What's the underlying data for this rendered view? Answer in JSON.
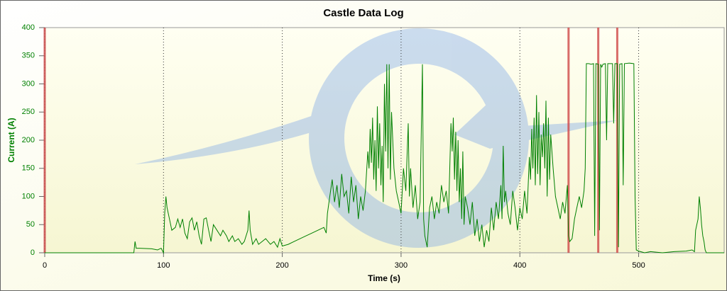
{
  "chart_data": {
    "type": "line",
    "title": "Castle Data Log",
    "xlabel": "Time (s)",
    "ylabel": "Current (A)",
    "xlim": [
      0,
      572
    ],
    "ylim": [
      0,
      400
    ],
    "xticks": [
      0,
      100,
      200,
      300,
      400,
      500
    ],
    "yticks": [
      0,
      50,
      100,
      150,
      200,
      250,
      300,
      350,
      400
    ],
    "grid": true,
    "markers": [
      0,
      441,
      466,
      482
    ],
    "marker_color": "#d04848",
    "series": [
      {
        "name": "Current (A)",
        "color": "#008000",
        "x": [
          0,
          75,
          76,
          77,
          80,
          90,
          95,
          98,
          100,
          101,
          102,
          103,
          105,
          107,
          110,
          112,
          114,
          116,
          118,
          120,
          122,
          124,
          126,
          128,
          130,
          132,
          134,
          136,
          138,
          140,
          142,
          145,
          148,
          150,
          153,
          155,
          158,
          160,
          163,
          166,
          168,
          171,
          172,
          173,
          175,
          178,
          180,
          183,
          186,
          190,
          193,
          196,
          198,
          200,
          205,
          210,
          215,
          220,
          225,
          230,
          235,
          237,
          238,
          240,
          242,
          244,
          246,
          248,
          250,
          252,
          254,
          256,
          258,
          260,
          262,
          264,
          266,
          268,
          270,
          272,
          273,
          274,
          275,
          276,
          277,
          278,
          279,
          280,
          281,
          282,
          283,
          284,
          285,
          286,
          287,
          288,
          289,
          290,
          291,
          292,
          293,
          294,
          296,
          298,
          300,
          302,
          304,
          306,
          307,
          308,
          310,
          312,
          314,
          316,
          318,
          319,
          320,
          322,
          324,
          326,
          328,
          330,
          332,
          334,
          336,
          338,
          340,
          342,
          343,
          344,
          345,
          346,
          347,
          348,
          349,
          350,
          351,
          352,
          353,
          354,
          356,
          358,
          360,
          362,
          364,
          366,
          368,
          370,
          372,
          374,
          376,
          378,
          380,
          382,
          384,
          385,
          386,
          387,
          388,
          390,
          392,
          394,
          396,
          398,
          400,
          402,
          404,
          406,
          408,
          409,
          410,
          411,
          412,
          413,
          414,
          415,
          416,
          417,
          418,
          419,
          420,
          421,
          422,
          423,
          424,
          425,
          426,
          428,
          430,
          432,
          434,
          436,
          438,
          440,
          441,
          442,
          444,
          446,
          448,
          450,
          452,
          454,
          455,
          456,
          458,
          460,
          462,
          463,
          464,
          466,
          467,
          468,
          469,
          470,
          472,
          473,
          474,
          478,
          479,
          480,
          482,
          483,
          484,
          486,
          487,
          488,
          492,
          496,
          497,
          498,
          500,
          505,
          510,
          520,
          530,
          540,
          545,
          547,
          548,
          550,
          551,
          552,
          553,
          554,
          555,
          556,
          557,
          572
        ],
        "values": [
          0,
          0,
          20,
          8,
          8,
          7,
          5,
          8,
          0,
          70,
          100,
          80,
          60,
          40,
          45,
          60,
          45,
          60,
          35,
          25,
          55,
          62,
          40,
          55,
          30,
          15,
          60,
          62,
          40,
          20,
          50,
          40,
          30,
          40,
          30,
          20,
          30,
          20,
          25,
          15,
          20,
          40,
          75,
          40,
          15,
          25,
          15,
          20,
          25,
          15,
          20,
          10,
          25,
          12,
          15,
          20,
          25,
          30,
          35,
          40,
          45,
          35,
          70,
          100,
          130,
          90,
          120,
          80,
          140,
          100,
          110,
          70,
          135,
          90,
          120,
          60,
          100,
          75,
          110,
          180,
          150,
          220,
          160,
          240,
          130,
          200,
          110,
          260,
          150,
          230,
          120,
          190,
          90,
          300,
          180,
          335,
          150,
          335,
          130,
          250,
          200,
          150,
          110,
          90,
          70,
          150,
          110,
          230,
          100,
          150,
          80,
          120,
          60,
          90,
          335,
          60,
          30,
          10,
          80,
          100,
          60,
          90,
          70,
          120,
          90,
          110,
          70,
          230,
          180,
          240,
          130,
          215,
          110,
          200,
          90,
          150,
          60,
          180,
          50,
          100,
          80,
          50,
          90,
          30,
          60,
          20,
          50,
          10,
          40,
          20,
          80,
          40,
          90,
          60,
          120,
          60,
          190,
          90,
          110,
          70,
          50,
          110,
          80,
          40,
          80,
          60,
          110,
          70,
          170,
          130,
          220,
          150,
          240,
          120,
          280,
          140,
          250,
          120,
          210,
          170,
          230,
          150,
          270,
          100,
          240,
          130,
          210,
          150,
          100,
          80,
          60,
          90,
          70,
          120,
          30,
          20,
          25,
          60,
          80,
          100,
          80,
          110,
          150,
          336,
          336,
          335,
          336,
          30,
          336,
          335,
          40,
          335,
          330,
          335,
          336,
          200,
          336,
          336,
          230,
          336,
          336,
          10,
          335,
          336,
          120,
          336,
          337,
          336,
          100,
          5,
          3,
          0,
          2,
          0,
          2,
          3,
          5,
          2,
          40,
          60,
          100,
          80,
          50,
          30,
          20,
          5,
          0,
          0
        ]
      }
    ]
  }
}
